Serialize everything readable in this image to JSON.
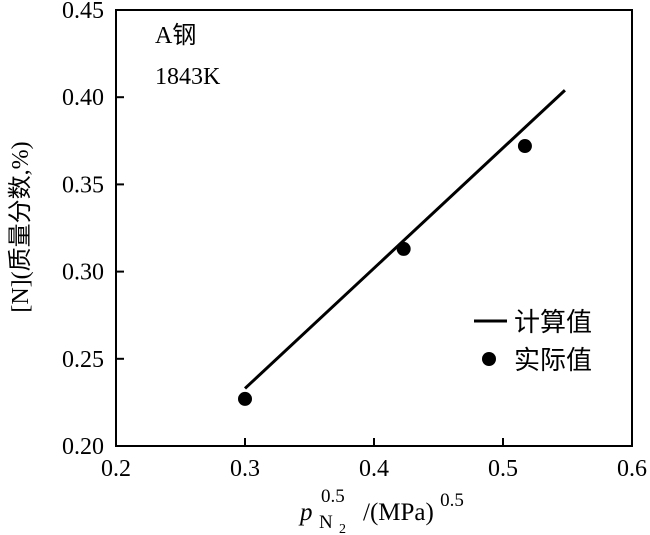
{
  "chart_data": {
    "type": "scatter",
    "xlim": [
      0.2,
      0.6
    ],
    "ylim": [
      0.2,
      0.45
    ],
    "x_ticks": [
      0.2,
      0.3,
      0.4,
      0.5,
      0.6
    ],
    "y_ticks": [
      0.2,
      0.25,
      0.3,
      0.35,
      0.4,
      0.45
    ],
    "x_tick_labels": [
      "0.2",
      "0.3",
      "0.4",
      "0.5",
      "0.6"
    ],
    "y_tick_labels": [
      "0.20",
      "0.25",
      "0.30",
      "0.35",
      "0.40",
      "0.45"
    ],
    "xlabel": {
      "p": "p",
      "sub": "N",
      "sub2": "2",
      "sup": "0.5",
      "rest": "/(MPa)",
      "rest_sup": "0.5"
    },
    "ylabel": "[N](质量分数,%)",
    "annotations": {
      "steel": "A钢",
      "temperature": "1843K"
    },
    "legend_position": "lower-right",
    "grid": false,
    "series": [
      {
        "name": "计算值",
        "kind": "line",
        "color": "#000000",
        "x": [
          0.3,
          0.548
        ],
        "y": [
          0.233,
          0.404
        ]
      },
      {
        "name": "实际值",
        "kind": "points",
        "color": "#000000",
        "x": [
          0.3,
          0.423,
          0.517
        ],
        "y": [
          0.227,
          0.313,
          0.372
        ]
      }
    ]
  }
}
